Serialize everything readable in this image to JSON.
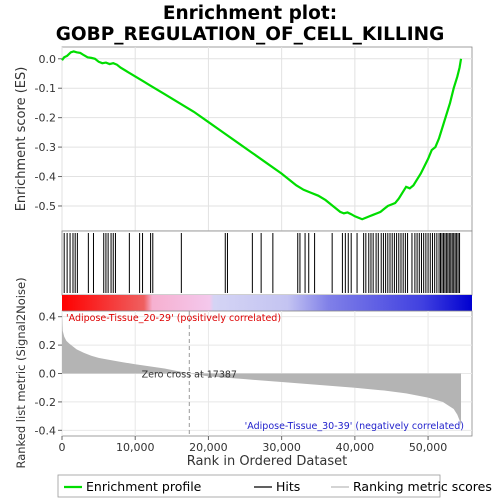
{
  "chart_data": {
    "type": "line",
    "title_line1": "Enrichment plot:",
    "title_line2": "GOBP_REGULATION_OF_CELL_KILLING",
    "es_ylabel": "Enrichment score (ES)",
    "metric_ylabel": "Ranked list metric (Signal2Noise)",
    "xlabel": "Rank in Ordered Dataset",
    "xlim": [
      0,
      56000
    ],
    "es_ylim": [
      -0.585,
      0.04
    ],
    "metric_ylim": [
      -0.44,
      0.44
    ],
    "x_ticks": [
      0,
      10000,
      20000,
      30000,
      40000,
      50000
    ],
    "x_tick_labels": [
      "0",
      "10,000",
      "20,000",
      "30,000",
      "40,000",
      "50,000"
    ],
    "es_ticks": [
      0.0,
      -0.1,
      -0.2,
      -0.3,
      -0.4,
      -0.5
    ],
    "es_tick_labels": [
      "0.0",
      "-0.1",
      "-0.2",
      "-0.3",
      "-0.4",
      "-0.5"
    ],
    "metric_ticks": [
      0.4,
      0.2,
      0.0,
      -0.2,
      -0.4
    ],
    "metric_tick_labels": [
      "0.4",
      "0.2",
      "0.0",
      "-0.2",
      "-0.4"
    ],
    "zero_cross_rank": 17387,
    "zero_cross_label": "Zero cross at 17387",
    "pos_label": "'Adipose-Tissue_20-29' (positively correlated)",
    "neg_label": "'Adipose-Tissue_30-39' (negatively correlated)",
    "n_genes": 54500,
    "series": [
      {
        "name": "Enrichment profile",
        "color": "#00cc00",
        "x": [
          0,
          300,
          700,
          1200,
          1600,
          2000,
          2500,
          3000,
          3500,
          4000,
          4500,
          5000,
          5500,
          6000,
          6500,
          7000,
          7500,
          8000,
          9000,
          10000,
          11000,
          12000,
          14000,
          16000,
          18000,
          20000,
          22000,
          24000,
          26000,
          28000,
          30000,
          31000,
          32000,
          33000,
          34000,
          35000,
          36000,
          37000,
          38000,
          38500,
          39000,
          39500,
          40000,
          40500,
          41000,
          41500,
          42000,
          42500,
          43000,
          43500,
          44000,
          44500,
          45000,
          45500,
          46000,
          46500,
          47000,
          47500,
          48000,
          48500,
          49000,
          49500,
          50000,
          50500,
          51000,
          51500,
          52000,
          52500,
          53000,
          53500,
          54000,
          54300,
          54500
        ],
        "values": [
          -0.005,
          0.005,
          0.01,
          0.022,
          0.025,
          0.022,
          0.02,
          0.012,
          0.005,
          0.003,
          0.0,
          -0.01,
          -0.015,
          -0.013,
          -0.018,
          -0.015,
          -0.02,
          -0.03,
          -0.045,
          -0.06,
          -0.075,
          -0.09,
          -0.12,
          -0.15,
          -0.18,
          -0.215,
          -0.25,
          -0.285,
          -0.32,
          -0.355,
          -0.39,
          -0.41,
          -0.43,
          -0.445,
          -0.455,
          -0.465,
          -0.48,
          -0.5,
          -0.52,
          -0.525,
          -0.522,
          -0.528,
          -0.535,
          -0.54,
          -0.545,
          -0.54,
          -0.535,
          -0.53,
          -0.525,
          -0.52,
          -0.51,
          -0.5,
          -0.495,
          -0.49,
          -0.475,
          -0.455,
          -0.435,
          -0.44,
          -0.43,
          -0.41,
          -0.39,
          -0.365,
          -0.34,
          -0.31,
          -0.3,
          -0.27,
          -0.23,
          -0.19,
          -0.15,
          -0.1,
          -0.06,
          -0.03,
          0.0
        ]
      }
    ],
    "hits": [
      300,
      700,
      1100,
      1500,
      1800,
      2100,
      3600,
      4300,
      5700,
      6000,
      6300,
      6700,
      7000,
      7300,
      9200,
      10600,
      11000,
      12100,
      12400,
      16300,
      22300,
      22600,
      26000,
      27200,
      28800,
      32200,
      32500,
      33200,
      33700,
      34500,
      36900,
      38300,
      38700,
      39100,
      39500,
      40300,
      41200,
      41500,
      41900,
      42200,
      42500,
      42900,
      43200,
      43600,
      43900,
      44200,
      44500,
      44800,
      45100,
      45400,
      45700,
      46000,
      46300,
      46600,
      46900,
      47200,
      47800,
      48200,
      48500,
      48800,
      49100,
      49400,
      49700,
      50000,
      50300,
      50600,
      50900,
      51200,
      51500,
      51700,
      51900,
      52100,
      52300,
      52500,
      52700,
      52900,
      53100,
      53300,
      53500,
      53700,
      53900,
      54100,
      54300
    ],
    "metric": {
      "x": [
        0,
        100,
        300,
        600,
        1000,
        1500,
        2000,
        3000,
        4000,
        5000,
        6000,
        8000,
        10000,
        12000,
        14000,
        17387,
        20000,
        25000,
        30000,
        35000,
        40000,
        44000,
        47000,
        50000,
        52000,
        53500,
        54000,
        54300,
        54500
      ],
      "values": [
        0.43,
        0.3,
        0.26,
        0.23,
        0.21,
        0.19,
        0.17,
        0.145,
        0.125,
        0.11,
        0.1,
        0.082,
        0.065,
        0.05,
        0.035,
        0.0,
        -0.02,
        -0.04,
        -0.06,
        -0.08,
        -0.1,
        -0.12,
        -0.14,
        -0.17,
        -0.2,
        -0.25,
        -0.29,
        -0.33,
        -0.37
      ]
    },
    "legend": [
      "Enrichment profile",
      "Hits",
      "Ranking metric scores"
    ]
  }
}
